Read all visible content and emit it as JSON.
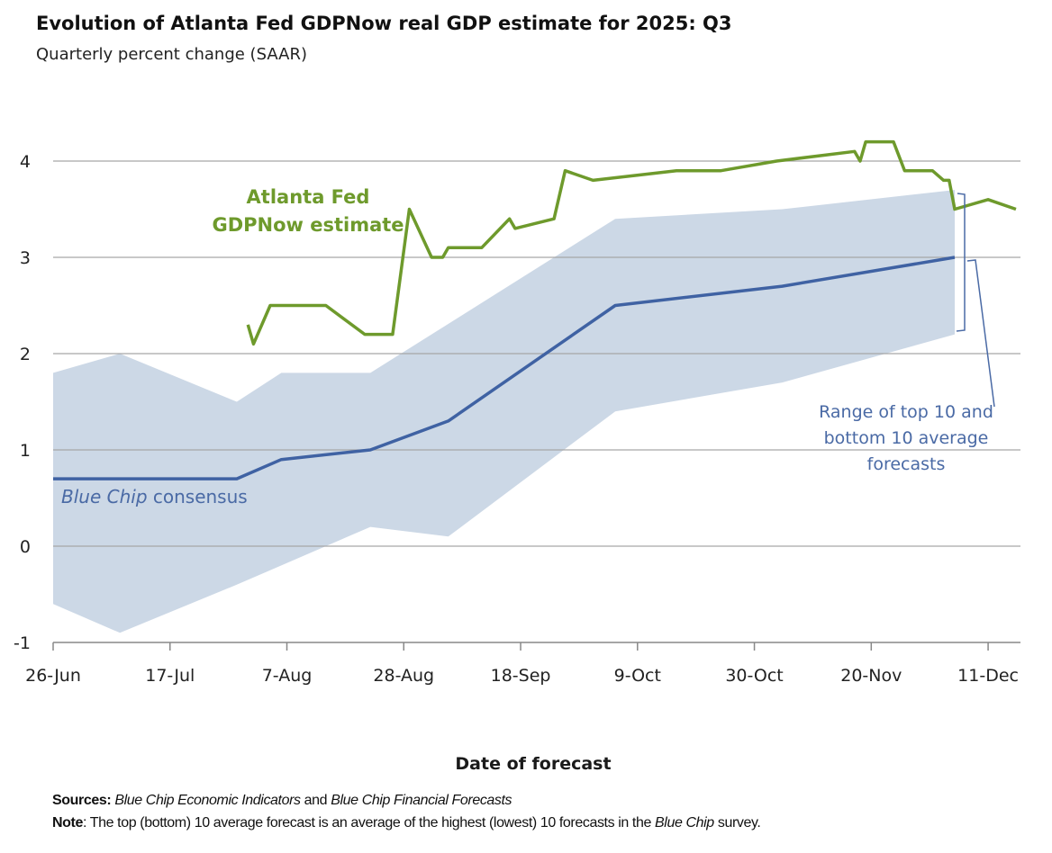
{
  "title": "Evolution of Atlanta Fed GDPNow real GDP estimate for 2025: Q3",
  "subtitle": "Quarterly percent change (SAAR)",
  "annotations": {
    "gdpnow_line1": "Atlanta Fed",
    "gdpnow_line2": "GDPNow estimate",
    "consensus_italic": "Blue Chip",
    "consensus_rest": " consensus",
    "range_line1": "Range of top 10 and",
    "range_line2": "bottom 10 average",
    "range_line3": "forecasts"
  },
  "footer": {
    "sources_label": "Sources:",
    "sources_italic1": "Blue Chip Economic Indicators",
    "sources_and": " and ",
    "sources_italic2": "Blue Chip Financial Forecasts",
    "note_label": "Note",
    "note_text1": ": The top (bottom) 10 average forecast is an average of the highest (lowest) 10 forecasts in the ",
    "note_italic": "Blue Chip",
    "note_text2": " survey."
  },
  "colors": {
    "gdpnow": "#6e9a2c",
    "consensus": "#3f62a3",
    "band": "#ccd8e6",
    "grid": "#a6a6a6"
  },
  "chart_data": {
    "type": "line",
    "title": "Evolution of Atlanta Fed GDPNow real GDP estimate for 2025: Q3",
    "subtitle": "Quarterly percent change (SAAR)",
    "xlabel": "Date of forecast",
    "ylabel": "",
    "ylim": [
      -1,
      4.3
    ],
    "yticks": [
      "-1",
      "0",
      "1",
      "2",
      "3",
      "4"
    ],
    "xlim": [
      "2025-06-26",
      "2025-12-16"
    ],
    "xticks": [
      {
        "date": "2025-06-26",
        "label": "26-Jun"
      },
      {
        "date": "2025-07-17",
        "label": "17-Jul"
      },
      {
        "date": "2025-08-07",
        "label": "7-Aug"
      },
      {
        "date": "2025-08-28",
        "label": "28-Aug"
      },
      {
        "date": "2025-09-18",
        "label": "18-Sep"
      },
      {
        "date": "2025-10-09",
        "label": "9-Oct"
      },
      {
        "date": "2025-10-30",
        "label": "30-Oct"
      },
      {
        "date": "2025-11-20",
        "label": "20-Nov"
      },
      {
        "date": "2025-12-11",
        "label": "11-Dec"
      }
    ],
    "grid": true,
    "series": [
      {
        "name": "Atlanta Fed GDPNow estimate",
        "type": "line",
        "points": [
          [
            "2025-07-31",
            2.3
          ],
          [
            "2025-08-01",
            2.1
          ],
          [
            "2025-08-04",
            2.5
          ],
          [
            "2025-08-14",
            2.5
          ],
          [
            "2025-08-21",
            2.2
          ],
          [
            "2025-08-26",
            2.2
          ],
          [
            "2025-08-29",
            3.5
          ],
          [
            "2025-09-02",
            3.0
          ],
          [
            "2025-09-04",
            3.0
          ],
          [
            "2025-09-05",
            3.1
          ],
          [
            "2025-09-11",
            3.1
          ],
          [
            "2025-09-16",
            3.4
          ],
          [
            "2025-09-17",
            3.3
          ],
          [
            "2025-09-24",
            3.4
          ],
          [
            "2025-09-26",
            3.9
          ],
          [
            "2025-10-01",
            3.8
          ],
          [
            "2025-10-16",
            3.9
          ],
          [
            "2025-10-24",
            3.9
          ],
          [
            "2025-11-03",
            4.0
          ],
          [
            "2025-11-17",
            4.1
          ],
          [
            "2025-11-18",
            4.0
          ],
          [
            "2025-11-19",
            4.2
          ],
          [
            "2025-11-24",
            4.2
          ],
          [
            "2025-11-26",
            3.9
          ],
          [
            "2025-12-01",
            3.9
          ],
          [
            "2025-12-03",
            3.8
          ],
          [
            "2025-12-04",
            3.8
          ],
          [
            "2025-12-05",
            3.5
          ],
          [
            "2025-12-11",
            3.6
          ],
          [
            "2025-12-16",
            3.5
          ]
        ]
      },
      {
        "name": "Blue Chip consensus",
        "type": "line",
        "points": [
          [
            "2025-06-26",
            0.7
          ],
          [
            "2025-07-29",
            0.7
          ],
          [
            "2025-08-06",
            0.9
          ],
          [
            "2025-08-22",
            1.0
          ],
          [
            "2025-09-05",
            1.3
          ],
          [
            "2025-10-05",
            2.5
          ],
          [
            "2025-11-04",
            2.7
          ],
          [
            "2025-12-05",
            3.0
          ]
        ]
      },
      {
        "name": "Range of top 10 and bottom 10 average forecasts",
        "type": "area",
        "upper": [
          [
            "2025-06-26",
            1.8
          ],
          [
            "2025-07-08",
            2.0
          ],
          [
            "2025-07-29",
            1.5
          ],
          [
            "2025-08-06",
            1.8
          ],
          [
            "2025-08-22",
            1.8
          ],
          [
            "2025-10-05",
            3.4
          ],
          [
            "2025-11-04",
            3.5
          ],
          [
            "2025-12-05",
            3.7
          ]
        ],
        "lower": [
          [
            "2025-06-26",
            -0.6
          ],
          [
            "2025-07-08",
            -0.9
          ],
          [
            "2025-07-29",
            -0.4
          ],
          [
            "2025-08-22",
            0.2
          ],
          [
            "2025-09-05",
            0.1
          ],
          [
            "2025-10-05",
            1.4
          ],
          [
            "2025-11-04",
            1.7
          ],
          [
            "2025-12-05",
            2.2
          ]
        ]
      }
    ]
  }
}
